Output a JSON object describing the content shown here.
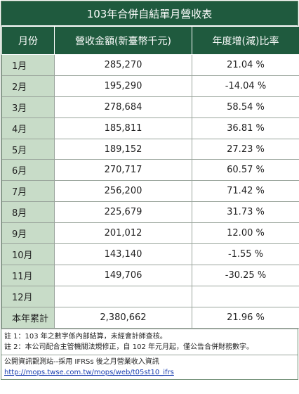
{
  "title": "103年合併自結單月營收表",
  "headers": [
    "月份",
    "營收金額(新臺幣千元)",
    "年度增(減)比率"
  ],
  "rows": [
    {
      "month": "1月",
      "revenue": "285,270",
      "growth": "21.04 %"
    },
    {
      "month": "2月",
      "revenue": "195,290",
      "growth": "-14.04 %"
    },
    {
      "month": "3月",
      "revenue": "278,684",
      "growth": "58.54 %"
    },
    {
      "month": "4月",
      "revenue": "185,811",
      "growth": "36.81 %"
    },
    {
      "month": "5月",
      "revenue": "189,152",
      "growth": "27.23 %"
    },
    {
      "month": "6月",
      "revenue": "270,717",
      "growth": "60.57 %"
    },
    {
      "month": "7月",
      "revenue": "256,200",
      "growth": "71.42 %"
    },
    {
      "month": "8月",
      "revenue": "225,679",
      "growth": "31.73 %"
    },
    {
      "month": "9月",
      "revenue": "201,012",
      "growth": "12.00 %"
    },
    {
      "month": "10月",
      "revenue": "143,140",
      "growth": "-1.55 %"
    },
    {
      "month": "11月",
      "revenue": "149,706",
      "growth": "-30.25 %"
    },
    {
      "month": "12月",
      "revenue": "",
      "growth": ""
    },
    {
      "month": "本年累計",
      "revenue": "2,380,662",
      "growth": "21.96 %"
    }
  ],
  "notes": [
    "註 1：103 年之數字係內部結算，未經會計師查核。",
    "註 2：本公司配合主管機關法規修正，自 102 年元月起，僅公告合併財務數字。"
  ],
  "footer": {
    "text": "公開資訊觀測站--採用 IFRSs 後之月營業收入資訊",
    "link": "http://mops.twse.com.tw/mops/web/t05st10_ifrs"
  }
}
